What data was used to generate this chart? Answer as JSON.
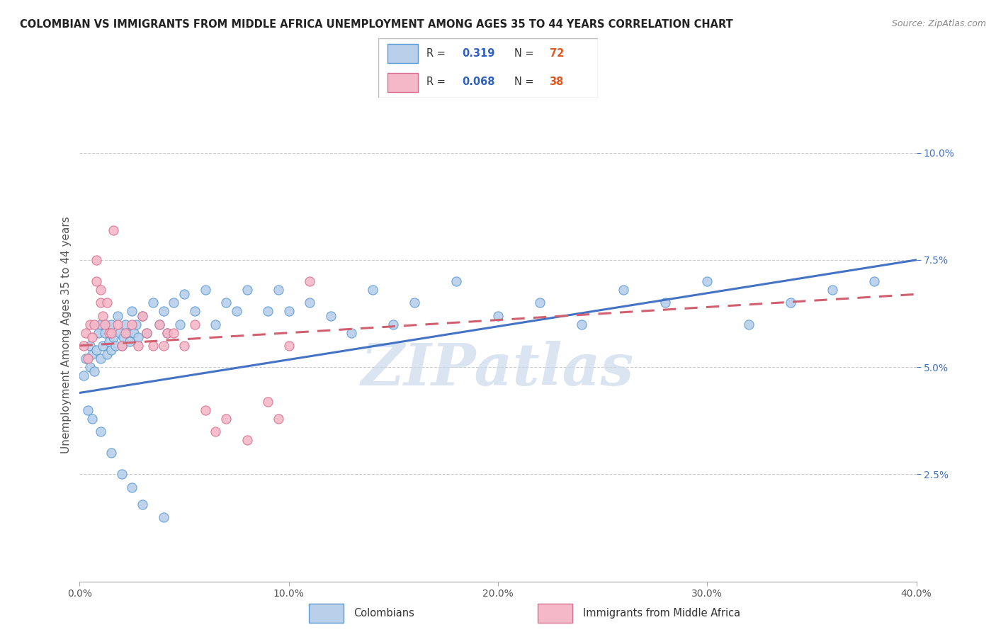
{
  "title": "COLOMBIAN VS IMMIGRANTS FROM MIDDLE AFRICA UNEMPLOYMENT AMONG AGES 35 TO 44 YEARS CORRELATION CHART",
  "source": "Source: ZipAtlas.com",
  "xlim": [
    0.0,
    0.4
  ],
  "ylim": [
    0.0,
    0.115
  ],
  "ylabel": "Unemployment Among Ages 35 to 44 years",
  "ytick_vals": [
    0.025,
    0.05,
    0.075,
    0.1
  ],
  "ytick_labels": [
    "2.5%",
    "5.0%",
    "7.5%",
    "10.0%"
  ],
  "xtick_vals": [
    0.0,
    0.1,
    0.2,
    0.3,
    0.4
  ],
  "xtick_labels": [
    "0.0%",
    "10.0%",
    "20.0%",
    "30.0%",
    "40.0%"
  ],
  "blue_scatter_color": "#b8d0ea",
  "blue_edge_color": "#5b9bd5",
  "pink_scatter_color": "#f4b8c8",
  "pink_edge_color": "#d87090",
  "line_blue_color": "#4472c4",
  "line_pink_color": "#d06070",
  "watermark": "ZIPatlas",
  "watermark_color": "#ccdaed",
  "legend_r1": "0.319",
  "legend_n1": "72",
  "legend_r2": "0.068",
  "legend_n2": "38",
  "blue_x": [
    0.002,
    0.003,
    0.005,
    0.005,
    0.006,
    0.007,
    0.008,
    0.009,
    0.01,
    0.01,
    0.011,
    0.012,
    0.013,
    0.014,
    0.015,
    0.015,
    0.016,
    0.017,
    0.018,
    0.019,
    0.02,
    0.021,
    0.022,
    0.023,
    0.024,
    0.025,
    0.026,
    0.027,
    0.028,
    0.03,
    0.032,
    0.035,
    0.038,
    0.04,
    0.042,
    0.045,
    0.048,
    0.05,
    0.055,
    0.06,
    0.065,
    0.07,
    0.075,
    0.08,
    0.09,
    0.095,
    0.1,
    0.11,
    0.12,
    0.13,
    0.14,
    0.15,
    0.16,
    0.18,
    0.2,
    0.22,
    0.24,
    0.26,
    0.28,
    0.3,
    0.32,
    0.34,
    0.36,
    0.38,
    0.004,
    0.006,
    0.01,
    0.015,
    0.02,
    0.025,
    0.03,
    0.04
  ],
  "blue_y": [
    0.048,
    0.052,
    0.05,
    0.055,
    0.053,
    0.049,
    0.054,
    0.058,
    0.052,
    0.06,
    0.055,
    0.058,
    0.053,
    0.056,
    0.06,
    0.054,
    0.057,
    0.055,
    0.062,
    0.058,
    0.055,
    0.057,
    0.06,
    0.058,
    0.056,
    0.063,
    0.058,
    0.06,
    0.057,
    0.062,
    0.058,
    0.065,
    0.06,
    0.063,
    0.058,
    0.065,
    0.06,
    0.067,
    0.063,
    0.068,
    0.06,
    0.065,
    0.063,
    0.068,
    0.063,
    0.068,
    0.063,
    0.065,
    0.062,
    0.058,
    0.068,
    0.06,
    0.065,
    0.07,
    0.062,
    0.065,
    0.06,
    0.068,
    0.065,
    0.07,
    0.06,
    0.065,
    0.068,
    0.07,
    0.04,
    0.038,
    0.035,
    0.03,
    0.025,
    0.022,
    0.018,
    0.015
  ],
  "pink_x": [
    0.002,
    0.003,
    0.004,
    0.005,
    0.006,
    0.007,
    0.008,
    0.008,
    0.01,
    0.01,
    0.011,
    0.012,
    0.013,
    0.014,
    0.015,
    0.016,
    0.018,
    0.02,
    0.022,
    0.025,
    0.028,
    0.03,
    0.032,
    0.035,
    0.038,
    0.04,
    0.042,
    0.045,
    0.05,
    0.055,
    0.06,
    0.065,
    0.07,
    0.08,
    0.09,
    0.095,
    0.1,
    0.11
  ],
  "pink_y": [
    0.055,
    0.058,
    0.052,
    0.06,
    0.057,
    0.06,
    0.07,
    0.075,
    0.065,
    0.068,
    0.062,
    0.06,
    0.065,
    0.058,
    0.058,
    0.082,
    0.06,
    0.055,
    0.058,
    0.06,
    0.055,
    0.062,
    0.058,
    0.055,
    0.06,
    0.055,
    0.058,
    0.058,
    0.055,
    0.06,
    0.04,
    0.035,
    0.038,
    0.033,
    0.042,
    0.038,
    0.055,
    0.07
  ]
}
